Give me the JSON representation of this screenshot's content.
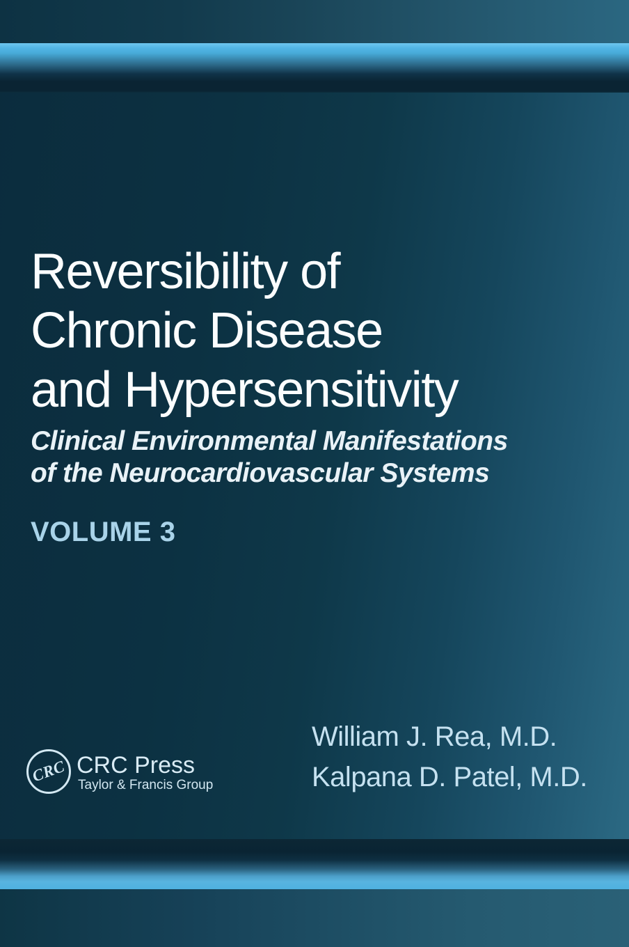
{
  "cover": {
    "title": {
      "lines": [
        "Reversibility of",
        "Chronic Disease",
        "and Hypersensitivity"
      ]
    },
    "subtitle": {
      "lines": [
        "Clinical Environmental Manifestations",
        "of the Neurocardiovascular Systems"
      ]
    },
    "volume_label": "VOLUME 3",
    "authors": [
      "William J. Rea, M.D.",
      "Kalpana D. Patel, M.D."
    ],
    "publisher": {
      "monogram": "CRC",
      "name": "CRC Press",
      "group": "Taylor & Francis Group"
    },
    "colors": {
      "accent_stripe": "#52b5e5",
      "background_dark": "#0c3142",
      "background_light": "#2d6c86",
      "dark_band": "#0a2433",
      "title_text": "#fbfdfe",
      "subtitle_text": "#e9f2f7",
      "volume_text": "#a9d3e9",
      "author_text": "#c5e1f0",
      "logo_text": "#d3e8f2"
    }
  }
}
